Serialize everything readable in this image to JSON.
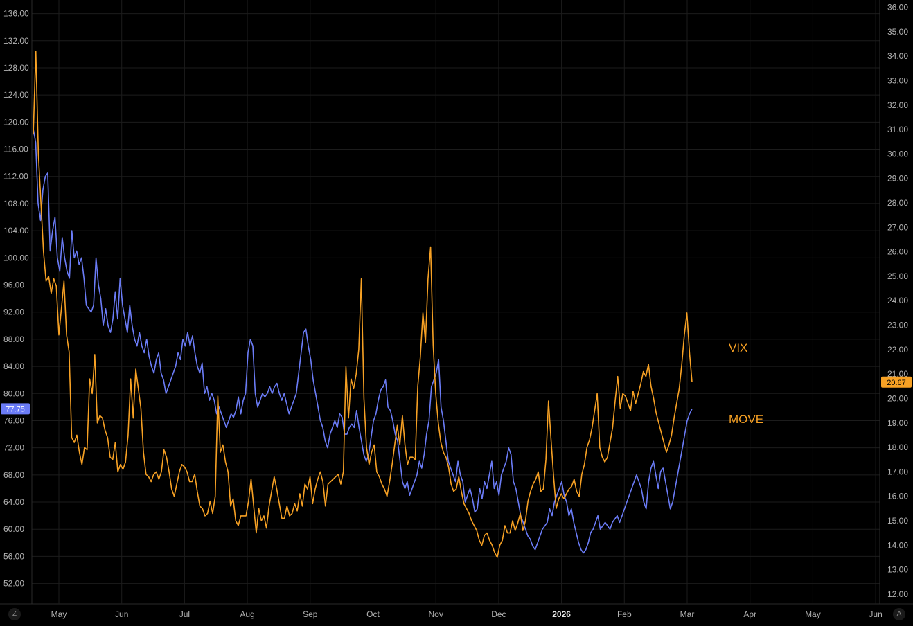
{
  "chart_data": {
    "type": "line",
    "x_labels": [
      "May",
      "Jun",
      "Jul",
      "Aug",
      "Sep",
      "Oct",
      "Nov",
      "Dec",
      "2026",
      "Feb",
      "Mar",
      "Apr",
      "May",
      "Jun"
    ],
    "left_axis": {
      "min": 49,
      "max": 138,
      "ticks": [
        "136.00",
        "132.00",
        "128.00",
        "124.00",
        "120.00",
        "116.00",
        "112.00",
        "108.00",
        "104.00",
        "100.00",
        "96.00",
        "92.00",
        "88.00",
        "84.00",
        "80.00",
        "76.00",
        "72.00",
        "68.00",
        "64.00",
        "60.00",
        "56.00",
        "52.00"
      ]
    },
    "right_axis": {
      "min": 11.6,
      "max": 36.3,
      "ticks": [
        "36.00",
        "35.00",
        "34.00",
        "33.00",
        "32.00",
        "31.00",
        "30.00",
        "29.00",
        "28.00",
        "27.00",
        "26.00",
        "25.00",
        "24.00",
        "23.00",
        "22.00",
        "21.00",
        "20.00",
        "19.00",
        "18.00",
        "17.00",
        "16.00",
        "15.00",
        "14.00",
        "13.00",
        "12.00"
      ]
    },
    "series": [
      {
        "name": "MOVE",
        "axis": "left",
        "color": "#6b7cf7",
        "last_value_label": "77.75",
        "values": [
          119,
          117,
          108,
          105.5,
          110,
          112,
          112.5,
          101,
          104,
          106,
          100,
          98,
          103,
          100,
          98,
          97,
          104,
          100,
          101,
          99,
          100,
          97,
          93,
          92.5,
          92,
          93,
          100,
          96,
          94,
          90,
          92.5,
          90,
          89,
          91,
          95,
          91,
          97,
          93,
          91,
          89,
          93,
          90,
          88,
          87,
          89,
          87,
          86,
          88,
          85.5,
          84,
          83,
          85,
          86,
          83,
          82,
          80,
          81,
          82,
          83,
          84,
          86,
          85,
          88,
          87,
          89,
          87,
          88.5,
          86,
          84,
          83,
          84.5,
          80,
          81,
          79,
          80,
          79,
          77,
          78,
          77,
          76,
          75,
          76,
          77,
          76.5,
          77.5,
          79.5,
          77,
          79,
          80,
          86,
          88,
          87,
          80,
          78,
          79,
          80,
          79.5,
          80,
          81,
          80,
          81,
          81.5,
          80,
          79,
          80,
          78.5,
          77,
          78,
          79,
          80,
          83,
          86,
          89,
          89.5,
          87,
          85,
          82,
          80,
          78,
          76,
          75,
          73,
          72,
          74,
          75,
          76,
          75,
          77,
          76.5,
          74,
          74,
          75,
          75.5,
          75,
          77.5,
          75,
          73,
          71,
          70,
          71,
          73.5,
          76,
          77,
          79,
          80.5,
          81,
          82,
          78,
          77.5,
          76,
          74,
          73,
          70,
          67,
          66,
          67,
          65,
          66,
          67,
          68,
          70,
          69,
          71,
          74,
          76,
          81,
          82,
          83,
          85,
          78,
          76,
          73,
          70,
          69,
          68,
          67,
          70,
          68,
          67,
          64,
          65,
          66,
          64.5,
          62.5,
          63,
          66,
          64.5,
          67,
          66,
          68,
          70,
          66,
          67,
          65,
          68,
          69,
          70,
          72,
          71,
          67,
          66,
          64,
          62,
          61,
          60,
          59,
          58.5,
          57.5,
          57,
          58,
          59,
          60,
          60.5,
          61,
          63,
          62,
          64,
          65,
          66,
          67,
          65,
          64,
          62,
          63,
          61,
          59.5,
          58,
          57,
          56.5,
          57,
          58,
          59.5,
          60,
          61,
          62,
          60,
          60.5,
          61,
          60.5,
          60,
          61,
          61.5,
          62,
          61,
          62,
          63,
          64,
          65,
          66,
          67,
          68,
          67,
          66,
          64,
          63,
          67,
          69,
          70,
          68,
          66,
          68.5,
          69,
          67,
          65,
          63,
          64,
          66,
          68,
          70,
          72,
          74,
          76,
          77,
          77.75
        ]
      },
      {
        "name": "VIX",
        "axis": "right",
        "color": "#f7a124",
        "last_value_label": "20.67",
        "values": [
          30.8,
          34.2,
          30,
          28,
          26,
          24.8,
          25,
          24.3,
          24.9,
          24.6,
          22.6,
          23.7,
          24.8,
          22.6,
          21.9,
          18.4,
          18.2,
          18.5,
          17.8,
          17.3,
          18.0,
          17.9,
          20.8,
          20.2,
          21.8,
          19.0,
          19.3,
          19.2,
          18.7,
          18.4,
          17.6,
          17.5,
          18.2,
          17.0,
          17.3,
          17.1,
          17.4,
          18.5,
          20.8,
          19.2,
          21.2,
          20.4,
          19.6,
          17.8,
          16.9,
          16.8,
          16.6,
          16.9,
          17.0,
          16.7,
          17.0,
          17.9,
          17.6,
          17.0,
          16.3,
          16.0,
          16.5,
          17.0,
          17.3,
          17.2,
          17.0,
          16.6,
          16.6,
          16.9,
          16.2,
          15.6,
          15.5,
          15.2,
          15.3,
          15.8,
          15.3,
          16.0,
          20.1,
          17.8,
          18.1,
          17.4,
          17.0,
          15.6,
          15.9,
          15.0,
          14.8,
          15.2,
          15.2,
          15.2,
          15.8,
          16.7,
          15.6,
          14.5,
          15.5,
          15.0,
          15.2,
          14.7,
          15.6,
          16.2,
          16.8,
          16.3,
          15.7,
          15.1,
          15.1,
          15.6,
          15.2,
          15.3,
          15.7,
          15.4,
          16.1,
          15.6,
          16.5,
          16.3,
          16.8,
          15.7,
          16.3,
          16.7,
          17.0,
          16.6,
          15.6,
          16.5,
          16.6,
          16.7,
          16.8,
          16.9,
          16.5,
          17.0,
          21.3,
          19.2,
          20.8,
          20.4,
          21.0,
          22.0,
          24.9,
          20.0,
          18.0,
          17.3,
          17.8,
          18.1,
          17.0,
          16.8,
          16.5,
          16.3,
          16.0,
          16.6,
          17.3,
          18.1,
          18.9,
          18.1,
          19.3,
          18.1,
          17.3,
          17.6,
          17.6,
          17.5,
          20.5,
          21.7,
          23.5,
          22.3,
          24.9,
          26.2,
          22.2,
          20.2,
          19.0,
          18.2,
          17.8,
          17.6,
          17.2,
          16.5,
          16.2,
          16.3,
          16.8,
          16.2,
          15.7,
          15.5,
          15.3,
          15.0,
          14.8,
          14.6,
          14.2,
          14.0,
          14.4,
          14.5,
          14.2,
          14.0,
          13.7,
          13.5,
          14.0,
          14.2,
          14.8,
          14.5,
          14.5,
          15.0,
          14.6,
          14.9,
          15.3,
          14.6,
          15.0,
          15.8,
          16.2,
          16.5,
          16.7,
          17.0,
          16.2,
          16.3,
          17.5,
          19.9,
          18.3,
          16.8,
          15.5,
          15.9,
          16.1,
          15.9,
          16.1,
          16.3,
          16.4,
          16.7,
          16.2,
          16.0,
          16.9,
          17.3,
          18.0,
          18.3,
          18.8,
          19.5,
          20.2,
          18.0,
          17.6,
          17.4,
          17.6,
          18.2,
          18.8,
          19.9,
          20.9,
          19.6,
          20.2,
          20.1,
          19.8,
          19.5,
          20.3,
          19.8,
          20.2,
          20.6,
          21.1,
          20.9,
          21.4,
          20.5,
          20.0,
          19.4,
          19.0,
          18.6,
          18.2,
          17.8,
          18.1,
          18.5,
          19.2,
          19.8,
          20.4,
          21.4,
          22.6,
          23.5,
          21.9,
          20.67
        ]
      }
    ],
    "annotations": [
      "VIX",
      "MOVE"
    ],
    "grid": true
  },
  "corner_buttons": {
    "left": "Z",
    "right": "A"
  }
}
